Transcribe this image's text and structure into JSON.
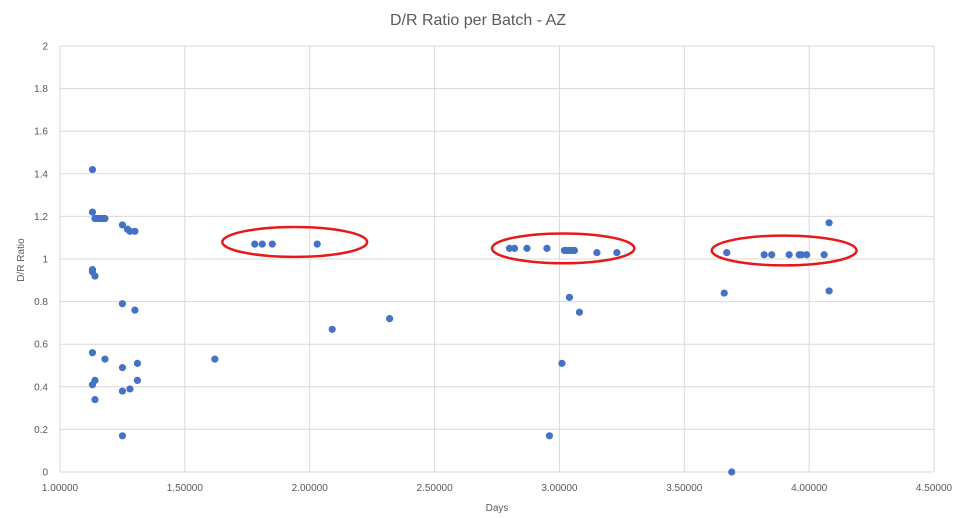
{
  "chart_data": {
    "type": "scatter",
    "title": "D/R Ratio per Batch - AZ",
    "xlabel": "Days",
    "ylabel": "D/R Ratio",
    "xlim": [
      1.0,
      4.5
    ],
    "ylim": [
      0,
      2
    ],
    "x_ticks": [
      1.0,
      1.5,
      2.0,
      2.5,
      3.0,
      3.5,
      4.0,
      4.5
    ],
    "x_tick_labels": [
      "1.00000",
      "1.50000",
      "2.00000",
      "2.50000",
      "3.00000",
      "3.50000",
      "4.00000",
      "4.50000"
    ],
    "y_ticks": [
      0,
      0.2,
      0.4,
      0.6,
      0.8,
      1,
      1.2,
      1.4,
      1.6,
      1.8,
      2
    ],
    "y_tick_labels": [
      "0",
      "0.2",
      "0.4",
      "0.6",
      "0.8",
      "1",
      "1.2",
      "1.4",
      "1.6",
      "1.8",
      "2"
    ],
    "grid": "vertical and horizontal",
    "marker_color": "#4472C4",
    "series": [
      {
        "points": [
          [
            1.13,
            1.42
          ],
          [
            1.13,
            1.22
          ],
          [
            1.14,
            1.19
          ],
          [
            1.15,
            1.19
          ],
          [
            1.16,
            1.19
          ],
          [
            1.17,
            1.19
          ],
          [
            1.18,
            1.19
          ],
          [
            1.13,
            0.95
          ],
          [
            1.13,
            0.94
          ],
          [
            1.14,
            0.92
          ],
          [
            1.13,
            0.56
          ],
          [
            1.18,
            0.53
          ],
          [
            1.14,
            0.43
          ],
          [
            1.13,
            0.41
          ],
          [
            1.14,
            0.34
          ],
          [
            1.25,
            1.16
          ],
          [
            1.27,
            1.14
          ],
          [
            1.28,
            1.13
          ],
          [
            1.3,
            1.13
          ],
          [
            1.25,
            0.79
          ],
          [
            1.3,
            0.76
          ],
          [
            1.31,
            0.51
          ],
          [
            1.25,
            0.49
          ],
          [
            1.31,
            0.43
          ],
          [
            1.25,
            0.38
          ],
          [
            1.28,
            0.39
          ],
          [
            1.25,
            0.17
          ],
          [
            1.62,
            0.53
          ],
          [
            1.78,
            1.07
          ],
          [
            1.81,
            1.07
          ],
          [
            1.85,
            1.07
          ],
          [
            2.03,
            1.07
          ],
          [
            2.09,
            0.67
          ],
          [
            2.32,
            0.72
          ],
          [
            2.8,
            1.05
          ],
          [
            2.82,
            1.05
          ],
          [
            2.87,
            1.05
          ],
          [
            2.95,
            1.05
          ],
          [
            3.02,
            1.04
          ],
          [
            3.03,
            1.04
          ],
          [
            3.04,
            1.04
          ],
          [
            3.05,
            1.04
          ],
          [
            3.06,
            1.04
          ],
          [
            3.15,
            1.03
          ],
          [
            3.23,
            1.03
          ],
          [
            3.04,
            0.82
          ],
          [
            3.08,
            0.75
          ],
          [
            3.01,
            0.51
          ],
          [
            2.96,
            0.17
          ],
          [
            3.67,
            1.03
          ],
          [
            3.66,
            0.84
          ],
          [
            3.69,
            0.0
          ],
          [
            3.82,
            1.02
          ],
          [
            3.85,
            1.02
          ],
          [
            3.92,
            1.02
          ],
          [
            3.96,
            1.02
          ],
          [
            3.97,
            1.02
          ],
          [
            3.99,
            1.02
          ],
          [
            4.06,
            1.02
          ],
          [
            4.08,
            1.17
          ],
          [
            4.08,
            0.85
          ]
        ]
      }
    ],
    "annotations": [
      {
        "shape": "ellipse",
        "color": "#E8191A",
        "x_range": [
          1.65,
          2.23
        ],
        "y_center": 1.08,
        "y_half_height": 0.07
      },
      {
        "shape": "ellipse",
        "color": "#E8191A",
        "x_range": [
          2.73,
          3.3
        ],
        "y_center": 1.05,
        "y_half_height": 0.07
      },
      {
        "shape": "ellipse",
        "color": "#E8191A",
        "x_range": [
          3.61,
          4.19
        ],
        "y_center": 1.04,
        "y_half_height": 0.07
      }
    ]
  }
}
